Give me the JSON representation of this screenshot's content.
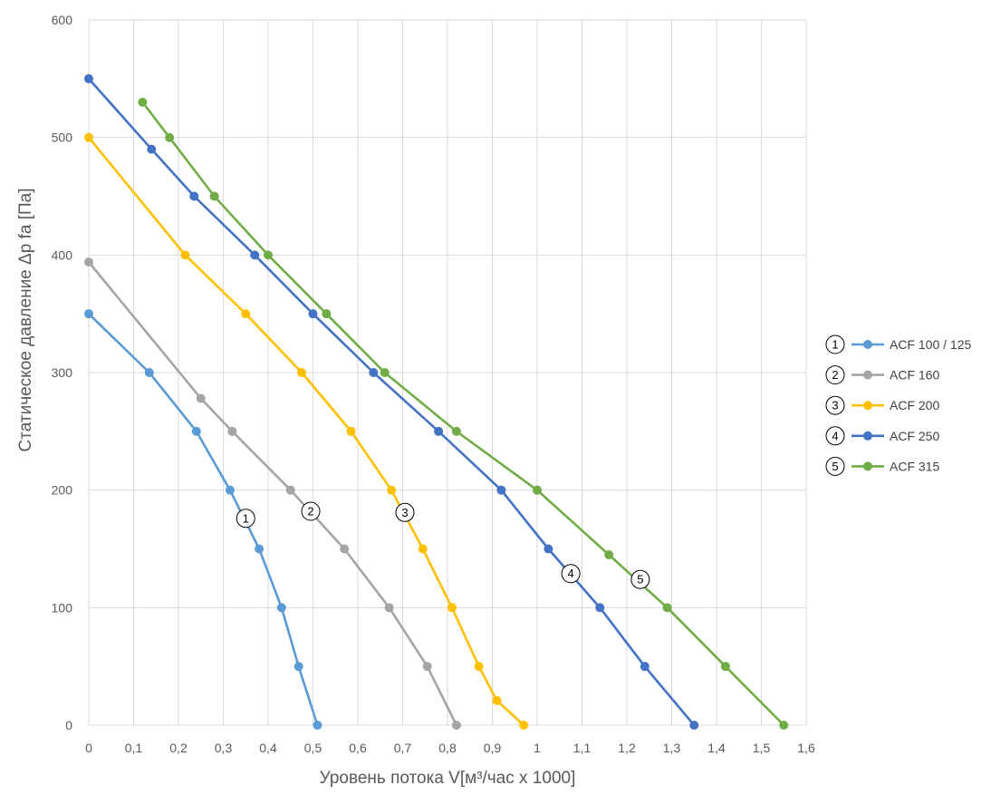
{
  "chart_data": {
    "type": "line",
    "title": "",
    "xlabel": "Уровень потока V[м³/час x 1000]",
    "ylabel": "Статическое давление Δp fa [Па]",
    "xlim": [
      0,
      1.6
    ],
    "ylim": [
      0,
      600
    ],
    "x_ticks": [
      "0",
      "0,1",
      "0,2",
      "0,3",
      "0,4",
      "0,5",
      "0,6",
      "0,7",
      "0,8",
      "0,9",
      "1",
      "1,1",
      "1,2",
      "1,3",
      "1,4",
      "1,5",
      "1,6"
    ],
    "y_ticks": [
      "0",
      "100",
      "200",
      "300",
      "400",
      "500",
      "600"
    ],
    "grid": true,
    "legend_position": "right",
    "series": [
      {
        "name": "ACF 100 / 125",
        "number": "1",
        "color": "#5b9bd5",
        "x": [
          0,
          0.135,
          0.24,
          0.315,
          0.38,
          0.43,
          0.468,
          0.51
        ],
        "y": [
          350,
          300,
          250,
          200,
          150,
          100,
          50,
          0
        ],
        "curve_label_at": [
          0.35,
          176
        ]
      },
      {
        "name": "ACF 160",
        "number": "2",
        "color": "#a5a5a5",
        "x": [
          0,
          0.25,
          0.32,
          0.45,
          0.57,
          0.67,
          0.755,
          0.82
        ],
        "y": [
          394,
          278,
          250,
          200,
          150,
          100,
          50,
          0
        ],
        "curve_label_at": [
          0.495,
          182
        ]
      },
      {
        "name": "ACF 200",
        "number": "3",
        "color": "#ffc000",
        "x": [
          0,
          0.215,
          0.35,
          0.475,
          0.585,
          0.675,
          0.745,
          0.81,
          0.87,
          0.91,
          0.97
        ],
        "y": [
          500,
          400,
          350,
          300,
          250,
          200,
          150,
          100,
          50,
          21,
          0
        ],
        "curve_label_at": [
          0.705,
          181
        ]
      },
      {
        "name": "ACF 250",
        "number": "4",
        "color": "#4472c4",
        "x": [
          0,
          0.14,
          0.235,
          0.37,
          0.5,
          0.635,
          0.78,
          0.92,
          1.025,
          1.14,
          1.24,
          1.35
        ],
        "y": [
          550,
          490,
          450,
          400,
          350,
          300,
          250,
          200,
          150,
          100,
          50,
          0
        ],
        "curve_label_at": [
          1.075,
          129
        ]
      },
      {
        "name": "ACF 315",
        "number": "5",
        "color": "#70ad47",
        "x": [
          0.12,
          0.18,
          0.28,
          0.4,
          0.53,
          0.66,
          0.82,
          1.0,
          1.16,
          1.29,
          1.42,
          1.55
        ],
        "y": [
          530,
          500,
          450,
          400,
          350,
          300,
          250,
          200,
          145,
          100,
          50,
          0
        ],
        "curve_label_at": [
          1.23,
          124
        ]
      }
    ]
  }
}
